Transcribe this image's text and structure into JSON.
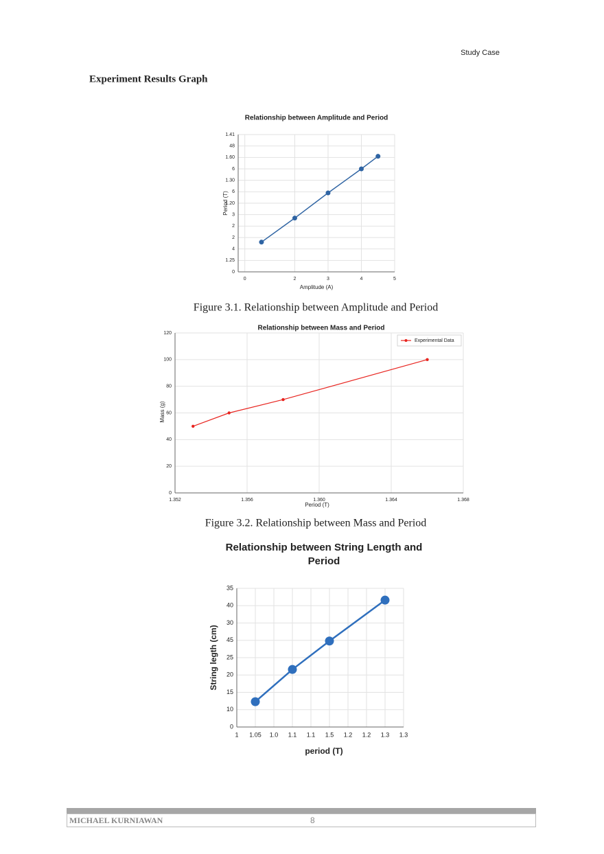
{
  "header": "Study Case",
  "heading": "Experiment Results Graph",
  "captions": [
    "Figure 3.1. Relationship between Amplitude and Period",
    "Figure 3.2. Relationship between Mass and Period"
  ],
  "footer": {
    "author": "MICHAEL KURNIAWAN",
    "page": 8
  },
  "chart_data": [
    {
      "type": "line",
      "title": "Relationship between Amplitude and Period",
      "xlabel": "Amplitude (A)",
      "ylabel": "Period (T)",
      "x": [
        1,
        2,
        3,
        4,
        4.5
      ],
      "series": [
        {
          "color": "#2f64a3",
          "values": [
            2.6,
            4.7,
            6.9,
            9.0,
            10.1
          ]
        }
      ],
      "xlim": [
        0.3,
        5
      ],
      "xticks": [
        {
          "value": 0.5,
          "label": "0"
        },
        2,
        3,
        4,
        5
      ],
      "ylim": [
        0,
        12
      ],
      "yticks": [
        {
          "value": 0,
          "label": "0"
        },
        {
          "value": 1,
          "label": "1.25"
        },
        {
          "value": 2,
          "label": "4"
        },
        {
          "value": 3,
          "label": "2"
        },
        {
          "value": 4,
          "label": "2"
        },
        {
          "value": 5,
          "label": "3"
        },
        {
          "value": 6,
          "label": "1.20"
        },
        {
          "value": 7,
          "label": "6"
        },
        {
          "value": 8,
          "label": "1.30"
        },
        {
          "value": 9,
          "label": "6"
        },
        {
          "value": 10,
          "label": "1.60"
        },
        {
          "value": 11,
          "label": "48"
        },
        {
          "value": 12,
          "label": "1.41"
        }
      ],
      "grid": true
    },
    {
      "type": "line",
      "title": "Relationship between Mass and Period",
      "xlabel": "Period (T)",
      "ylabel": "Mass (g)",
      "x": [
        1.353,
        1.355,
        1.358,
        1.366
      ],
      "series": [
        {
          "name": "Experimental Data",
          "color": "#e8241f",
          "values": [
            50,
            60,
            70,
            100
          ]
        }
      ],
      "xlim": [
        1.352,
        1.368
      ],
      "xticks": [
        1.352,
        1.356,
        {
          "value": 1.36,
          "label": "1.360"
        },
        1.364,
        1.368
      ],
      "ylim": [
        0,
        120
      ],
      "yticks": [
        0,
        20,
        40,
        60,
        80,
        100,
        120
      ],
      "grid": true,
      "legend": "upper right"
    },
    {
      "type": "line",
      "title": "Relationship between String Length and Period",
      "xlabel": "period (T)",
      "ylabel": "String legth (cm)",
      "x": [
        1,
        3,
        5,
        8
      ],
      "series": [
        {
          "color": "#2f6fbd",
          "values": [
            7.3,
            16.6,
            24.8,
            36.6
          ]
        }
      ],
      "xlim": [
        0,
        9
      ],
      "xticks": [
        {
          "value": 0,
          "label": "1"
        },
        {
          "value": 1,
          "label": "1.05"
        },
        {
          "value": 2,
          "label": "1.0"
        },
        {
          "value": 3,
          "label": "1.1"
        },
        {
          "value": 4,
          "label": "1.1"
        },
        {
          "value": 5,
          "label": "1.5"
        },
        {
          "value": 6,
          "label": "1.2"
        },
        {
          "value": 7,
          "label": "1.2"
        },
        {
          "value": 8,
          "label": "1.3"
        },
        {
          "value": 9,
          "label": "1.3"
        }
      ],
      "ylim": [
        0,
        40
      ],
      "yticks": [
        0,
        {
          "value": 5,
          "label": "10"
        },
        {
          "value": 10,
          "label": "15"
        },
        {
          "value": 15,
          "label": "20"
        },
        {
          "value": 20,
          "label": "25"
        },
        {
          "value": 25,
          "label": "45"
        },
        {
          "value": 30,
          "label": "30"
        },
        {
          "value": 35,
          "label": "40"
        },
        {
          "value": 40,
          "label": "35"
        }
      ],
      "grid": true
    }
  ]
}
